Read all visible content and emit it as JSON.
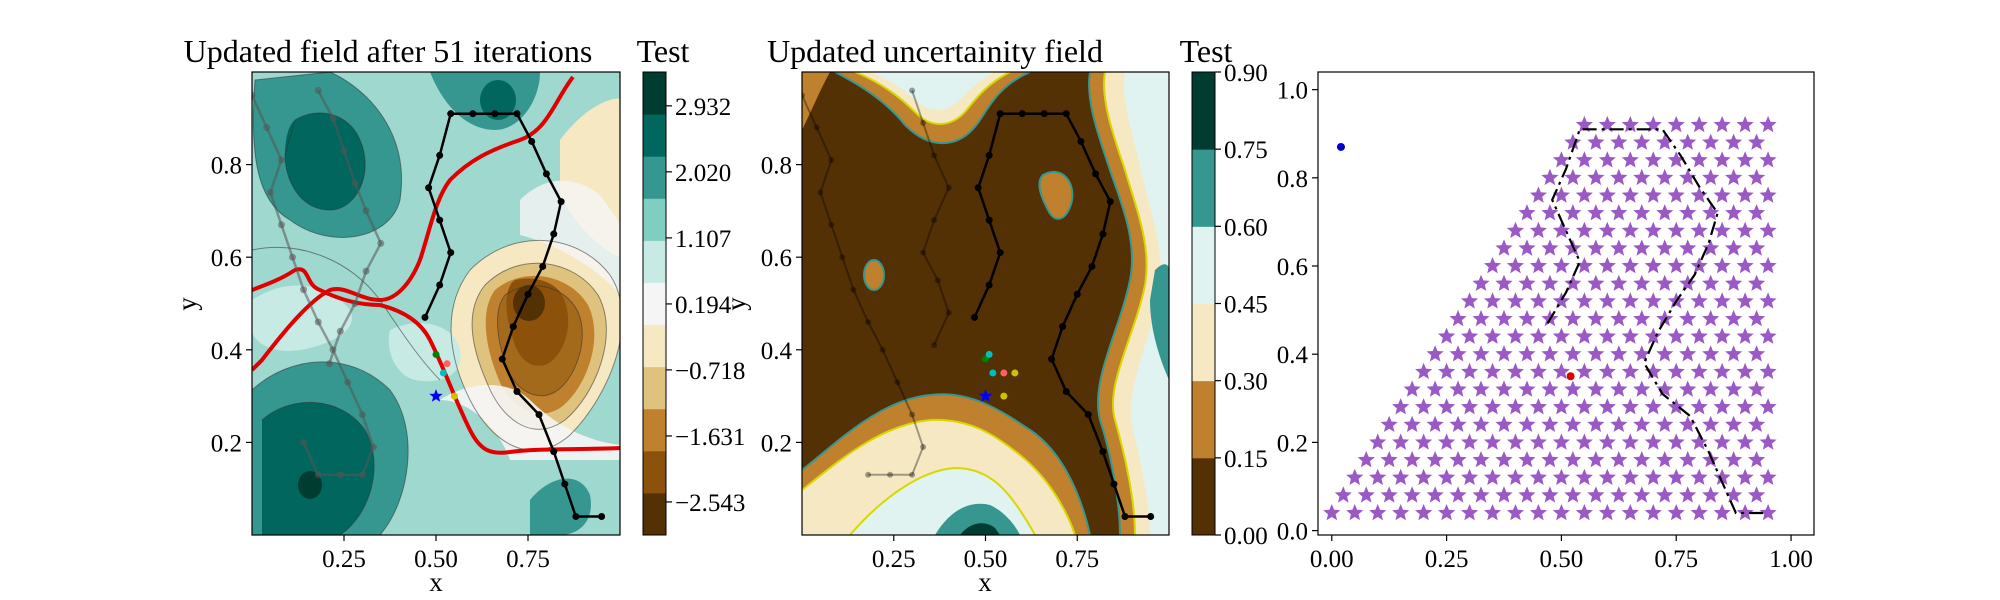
{
  "chart_data": [
    {
      "type": "contour",
      "title": "Updated field after 51 iterations",
      "xlabel": "x",
      "ylabel": "y",
      "xlim": [
        0.0,
        1.0
      ],
      "ylim": [
        0.0,
        1.0
      ],
      "xticks": [
        "0.25",
        "0.50",
        "0.75"
      ],
      "yticks": [
        "0.2",
        "0.4",
        "0.6",
        "0.8"
      ],
      "colorbar": {
        "label": "Test",
        "ticks": [
          "−2.543",
          "−1.631",
          "−0.718",
          "0.194",
          "1.107",
          "2.020",
          "2.932"
        ],
        "range": [
          -3.0,
          3.4
        ],
        "colors": [
          "#543005",
          "#8c510a",
          "#bf812d",
          "#dfc27d",
          "#f6e8c3",
          "#f5f5f5",
          "#c7eae5",
          "#80cdc1",
          "#35978f",
          "#01665e",
          "#003c30"
        ]
      },
      "boundary_color": "#e00000",
      "visited_path": [
        [
          0.47,
          0.47
        ],
        [
          0.51,
          0.54
        ],
        [
          0.54,
          0.61
        ],
        [
          0.51,
          0.68
        ],
        [
          0.48,
          0.75
        ],
        [
          0.51,
          0.82
        ],
        [
          0.54,
          0.91
        ],
        [
          0.6,
          0.91
        ],
        [
          0.66,
          0.91
        ],
        [
          0.72,
          0.91
        ],
        [
          0.76,
          0.85
        ],
        [
          0.8,
          0.78
        ],
        [
          0.84,
          0.72
        ],
        [
          0.82,
          0.65
        ],
        [
          0.79,
          0.58
        ],
        [
          0.75,
          0.52
        ],
        [
          0.71,
          0.45
        ],
        [
          0.68,
          0.38
        ],
        [
          0.72,
          0.31
        ],
        [
          0.78,
          0.26
        ],
        [
          0.82,
          0.18
        ],
        [
          0.85,
          0.11
        ],
        [
          0.88,
          0.04
        ],
        [
          0.95,
          0.04
        ]
      ],
      "faded_path": [
        [
          0.0,
          0.95
        ],
        [
          0.04,
          0.88
        ],
        [
          0.08,
          0.81
        ],
        [
          0.05,
          0.74
        ],
        [
          0.08,
          0.67
        ],
        [
          0.11,
          0.6
        ],
        [
          0.14,
          0.53
        ],
        [
          0.18,
          0.46
        ],
        [
          0.22,
          0.4
        ],
        [
          0.26,
          0.33
        ],
        [
          0.3,
          0.26
        ],
        [
          0.33,
          0.19
        ],
        [
          0.3,
          0.13
        ],
        [
          0.24,
          0.13
        ],
        [
          0.18,
          0.13
        ],
        [
          0.14,
          0.2
        ]
      ],
      "faded_path_2": [
        [
          0.18,
          0.96
        ],
        [
          0.22,
          0.9
        ],
        [
          0.25,
          0.83
        ],
        [
          0.28,
          0.76
        ],
        [
          0.31,
          0.7
        ],
        [
          0.35,
          0.63
        ],
        [
          0.31,
          0.57
        ],
        [
          0.28,
          0.5
        ],
        [
          0.24,
          0.44
        ],
        [
          0.21,
          0.37
        ]
      ],
      "markers": [
        {
          "x": 0.5,
          "y": 0.3,
          "color": "#0000ff",
          "shape": "star"
        },
        {
          "x": 0.5,
          "y": 0.39,
          "color": "#008000",
          "shape": "dot"
        },
        {
          "x": 0.52,
          "y": 0.35,
          "color": "#00bfbf",
          "shape": "dot"
        },
        {
          "x": 0.55,
          "y": 0.3,
          "color": "#d0c000",
          "shape": "dot"
        },
        {
          "x": 0.53,
          "y": 0.37,
          "color": "#ff6060",
          "shape": "dot"
        }
      ]
    },
    {
      "type": "contour",
      "title": "Updated uncertainity field",
      "xlabel": "x",
      "ylabel": "y",
      "xlim": [
        0.0,
        1.0
      ],
      "ylim": [
        0.0,
        1.0
      ],
      "xticks": [
        "0.25",
        "0.50",
        "0.75"
      ],
      "yticks": [
        "0.2",
        "0.4",
        "0.6",
        "0.8"
      ],
      "colorbar": {
        "label": "Test",
        "ticks": [
          "0.00",
          "0.15",
          "0.30",
          "0.45",
          "0.60",
          "0.75",
          "0.90"
        ],
        "range": [
          0.0,
          0.9
        ],
        "colors": [
          "#543005",
          "#bf812d",
          "#f6e8c3",
          "#e0f3f1",
          "#35978f",
          "#003c30"
        ]
      },
      "boundary_color": "#d8d800",
      "path": [
        [
          0.47,
          0.47
        ],
        [
          0.51,
          0.54
        ],
        [
          0.54,
          0.61
        ],
        [
          0.51,
          0.68
        ],
        [
          0.48,
          0.75
        ],
        [
          0.51,
          0.82
        ],
        [
          0.54,
          0.91
        ],
        [
          0.6,
          0.91
        ],
        [
          0.66,
          0.91
        ],
        [
          0.72,
          0.91
        ],
        [
          0.76,
          0.85
        ],
        [
          0.8,
          0.78
        ],
        [
          0.84,
          0.72
        ],
        [
          0.82,
          0.65
        ],
        [
          0.79,
          0.58
        ],
        [
          0.75,
          0.52
        ],
        [
          0.71,
          0.45
        ],
        [
          0.68,
          0.38
        ],
        [
          0.72,
          0.31
        ],
        [
          0.78,
          0.26
        ],
        [
          0.82,
          0.18
        ],
        [
          0.85,
          0.11
        ],
        [
          0.88,
          0.04
        ],
        [
          0.95,
          0.04
        ]
      ],
      "faded_path": [
        [
          0.0,
          0.95
        ],
        [
          0.04,
          0.88
        ],
        [
          0.08,
          0.81
        ],
        [
          0.05,
          0.74
        ],
        [
          0.08,
          0.67
        ],
        [
          0.11,
          0.6
        ],
        [
          0.14,
          0.53
        ],
        [
          0.18,
          0.46
        ],
        [
          0.22,
          0.4
        ],
        [
          0.26,
          0.33
        ],
        [
          0.3,
          0.26
        ],
        [
          0.33,
          0.19
        ],
        [
          0.3,
          0.13
        ],
        [
          0.24,
          0.13
        ],
        [
          0.18,
          0.13
        ]
      ],
      "faded_path_2": [
        [
          0.3,
          0.96
        ],
        [
          0.33,
          0.89
        ],
        [
          0.36,
          0.82
        ],
        [
          0.4,
          0.75
        ],
        [
          0.36,
          0.68
        ],
        [
          0.33,
          0.61
        ],
        [
          0.37,
          0.55
        ],
        [
          0.4,
          0.48
        ],
        [
          0.36,
          0.41
        ]
      ],
      "markers": [
        {
          "x": 0.5,
          "y": 0.3,
          "color": "#0000ff",
          "shape": "star"
        },
        {
          "x": 0.5,
          "y": 0.38,
          "color": "#008000",
          "shape": "dot"
        },
        {
          "x": 0.51,
          "y": 0.39,
          "color": "#00bfbf",
          "shape": "dot"
        },
        {
          "x": 0.52,
          "y": 0.35,
          "color": "#00bfbf",
          "shape": "dot"
        },
        {
          "x": 0.55,
          "y": 0.35,
          "color": "#ff6060",
          "shape": "dot"
        },
        {
          "x": 0.58,
          "y": 0.35,
          "color": "#d0c000",
          "shape": "dot"
        },
        {
          "x": 0.55,
          "y": 0.3,
          "color": "#d0c000",
          "shape": "dot"
        }
      ]
    },
    {
      "type": "scatter",
      "title": "",
      "xlabel": "",
      "ylabel": "",
      "xlim": [
        -0.03,
        1.05
      ],
      "ylim": [
        -0.01,
        1.04
      ],
      "xticks": [
        "0.00",
        "0.25",
        "0.50",
        "0.75",
        "1.00"
      ],
      "yticks": [
        "0.0",
        "0.2",
        "0.4",
        "0.6",
        "0.8",
        "1.0"
      ],
      "grid": false,
      "candidate_color": "#9b59c6",
      "path": [
        [
          0.47,
          0.47
        ],
        [
          0.51,
          0.54
        ],
        [
          0.54,
          0.61
        ],
        [
          0.51,
          0.68
        ],
        [
          0.48,
          0.75
        ],
        [
          0.51,
          0.82
        ],
        [
          0.54,
          0.91
        ],
        [
          0.6,
          0.91
        ],
        [
          0.66,
          0.91
        ],
        [
          0.72,
          0.91
        ],
        [
          0.76,
          0.85
        ],
        [
          0.8,
          0.78
        ],
        [
          0.84,
          0.72
        ],
        [
          0.82,
          0.65
        ],
        [
          0.79,
          0.58
        ],
        [
          0.75,
          0.52
        ],
        [
          0.71,
          0.45
        ],
        [
          0.68,
          0.38
        ],
        [
          0.72,
          0.31
        ],
        [
          0.78,
          0.26
        ],
        [
          0.82,
          0.18
        ],
        [
          0.85,
          0.11
        ],
        [
          0.88,
          0.04
        ],
        [
          0.95,
          0.04
        ]
      ],
      "highlight_points": [
        {
          "x": 0.02,
          "y": 0.87,
          "color": "#0000cc"
        },
        {
          "x": 0.52,
          "y": 0.35,
          "color": "#e00000"
        }
      ]
    }
  ]
}
